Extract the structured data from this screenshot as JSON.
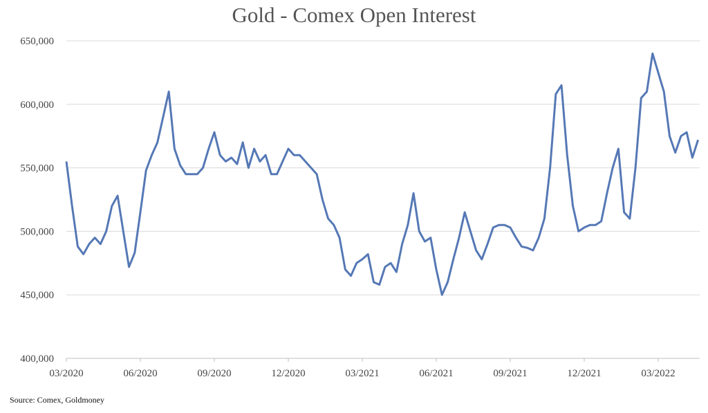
{
  "chart_data": {
    "type": "line",
    "title": "Gold - Comex Open Interest",
    "note": "Source: Comex, Goldmoney",
    "categories": [
      "03/2020",
      null,
      null,
      null,
      null,
      null,
      null,
      null,
      null,
      null,
      null,
      null,
      null,
      "06/2020",
      null,
      null,
      null,
      null,
      null,
      null,
      null,
      null,
      null,
      null,
      null,
      null,
      "09/2020",
      null,
      null,
      null,
      null,
      null,
      null,
      null,
      null,
      null,
      null,
      null,
      null,
      "12/2020",
      null,
      null,
      null,
      null,
      null,
      null,
      null,
      null,
      null,
      null,
      null,
      null,
      "03/2021",
      null,
      null,
      null,
      null,
      null,
      null,
      null,
      null,
      null,
      null,
      null,
      null,
      "06/2021",
      null,
      null,
      null,
      null,
      null,
      null,
      null,
      null,
      null,
      null,
      null,
      null,
      "09/2021",
      null,
      null,
      null,
      null,
      null,
      null,
      null,
      null,
      null,
      null,
      null,
      null,
      "12/2021",
      null,
      null,
      null,
      null,
      null,
      null,
      null,
      null,
      null,
      null,
      null,
      null,
      "03/2022",
      null,
      null,
      null,
      null,
      null,
      null,
      null
    ],
    "values": [
      555000,
      520000,
      488000,
      482000,
      490000,
      495000,
      490000,
      500000,
      520000,
      528000,
      500000,
      472000,
      483000,
      515000,
      548000,
      560000,
      570000,
      590000,
      610000,
      565000,
      552000,
      545000,
      545000,
      545000,
      550000,
      565000,
      578000,
      560000,
      555000,
      558000,
      553000,
      570000,
      550000,
      565000,
      555000,
      560000,
      545000,
      545000,
      555000,
      565000,
      560000,
      560000,
      555000,
      550000,
      545000,
      525000,
      510000,
      505000,
      495000,
      470000,
      465000,
      475000,
      478000,
      482000,
      460000,
      458000,
      472000,
      475000,
      468000,
      490000,
      505000,
      530000,
      500000,
      492000,
      495000,
      470000,
      450000,
      460000,
      478000,
      495000,
      515000,
      500000,
      485000,
      478000,
      490000,
      503000,
      505000,
      505000,
      503000,
      495000,
      488000,
      487000,
      485000,
      495000,
      510000,
      550000,
      608000,
      615000,
      560000,
      520000,
      500000,
      503000,
      505000,
      505000,
      508000,
      530000,
      550000,
      565000,
      515000,
      510000,
      550000,
      605000,
      610000,
      640000,
      625000,
      610000,
      575000,
      562000,
      575000,
      578000,
      558000,
      572000
    ],
    "color": "#5578b5",
    "ylim": [
      400000,
      650000
    ],
    "yticks": [
      {
        "value": 400000,
        "label": "400,000"
      },
      {
        "value": 450000,
        "label": "450,000"
      },
      {
        "value": 500000,
        "label": "500,000"
      },
      {
        "value": 550000,
        "label": "550,000"
      },
      {
        "value": 600000,
        "label": "600,000"
      },
      {
        "value": 650000,
        "label": "650,000"
      }
    ],
    "grid": true
  }
}
